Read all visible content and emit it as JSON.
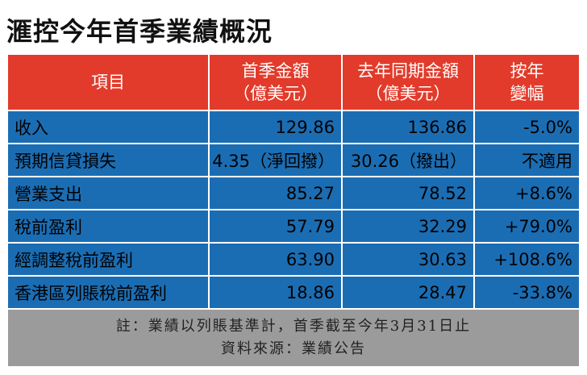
{
  "title": "滙控今年首季業績概況",
  "table": {
    "header": [
      [
        "項目"
      ],
      [
        "首季金額",
        "（億美元）"
      ],
      [
        "去年同期金額",
        "（億美元）"
      ],
      [
        "按年",
        "變幅"
      ]
    ],
    "rows": [
      [
        "收入",
        "129.86",
        "136.86",
        "-5.0%"
      ],
      [
        "預期信貸損失",
        "4.35（淨回撥）",
        "30.26（撥出）",
        "不適用"
      ],
      [
        "營業支出",
        "85.27",
        "78.52",
        "+8.6%"
      ],
      [
        "稅前盈利",
        "57.79",
        "32.29",
        "+79.0%"
      ],
      [
        "經調整稅前盈利",
        "63.90",
        "30.63",
        "+108.6%"
      ],
      [
        "香港區列賬稅前盈利",
        "18.86",
        "28.47",
        "-33.8%"
      ]
    ]
  },
  "footer": [
    "註：業績以列賬基準計，首季截至今年3月31日止",
    "資料來源：業績公告"
  ]
}
